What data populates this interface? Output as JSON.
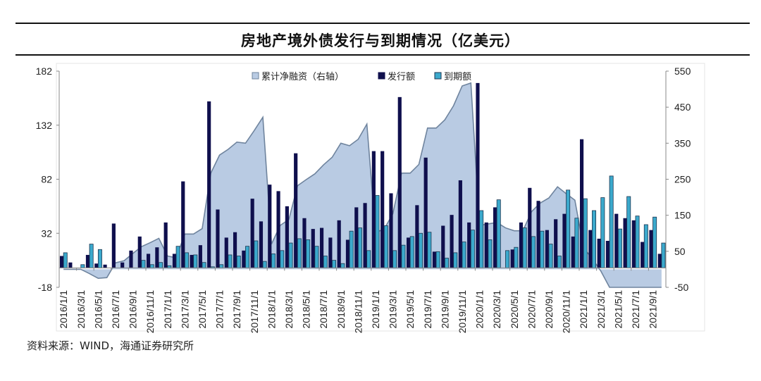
{
  "chart_data": {
    "type": "bar",
    "title": "房地产境外债发行与到期情况（亿美元）",
    "source": "资料来源：WIND，海通证券研究所",
    "legend_position": "top",
    "x_tick_labels": [
      "2016/1/1",
      "2016/3/1",
      "2016/5/1",
      "2016/7/1",
      "2016/9/1",
      "2016/11/1",
      "2017/1/1",
      "2017/3/1",
      "2017/5/1",
      "2017/7/1",
      "2017/9/1",
      "2017/11/1",
      "2018/1/1",
      "2018/3/1",
      "2018/5/1",
      "2018/7/1",
      "2018/9/1",
      "2018/11/1",
      "2019/1/1",
      "2019/3/1",
      "2019/5/1",
      "2019/7/1",
      "2019/9/1",
      "2019/11/1",
      "2020/1/1",
      "2020/3/1",
      "2020/5/1",
      "2020/7/1",
      "2020/9/1",
      "2020/11/1",
      "2021/1/1",
      "2021/3/1",
      "2021/5/1",
      "2021/7/1",
      "2021/9/1"
    ],
    "x_start": "2016/1",
    "x_end": "2021/10",
    "x_frequency": "monthly",
    "y_left": {
      "ylim": [
        -18,
        182
      ],
      "ticks": [
        -18,
        32,
        82,
        132,
        182
      ]
    },
    "y_right": {
      "ylim": [
        -50,
        550
      ],
      "ticks": [
        -50,
        50,
        150,
        250,
        350,
        450,
        550
      ]
    },
    "grid": false,
    "colors": {
      "issue": "#0f0f4d",
      "maturity": "#3ba9cc",
      "net_fill": "#b9cbe3",
      "net_line": "#6f849e"
    },
    "series": [
      {
        "name": "累计净融资（右轴）",
        "type": "area",
        "axis": "right",
        "values": [
          0,
          0,
          0,
          -12,
          -25,
          -23,
          18,
          24,
          44,
          63,
          74,
          86,
          37,
          32,
          98,
          98,
          113,
          267,
          317,
          333,
          353,
          350,
          385,
          422,
          70,
          122,
          138,
          232,
          249,
          265,
          290,
          311,
          350,
          343,
          361,
          403,
          102,
          112,
          154,
          267,
          267,
          291,
          392,
          392,
          415,
          454,
          509,
          517,
          122,
          126,
          130,
          115,
          107,
          107,
          160,
          184,
          198,
          229,
          210,
          192,
          60,
          30,
          -5,
          -52,
          -52,
          -52,
          -52,
          -52,
          -52,
          -52
        ]
      },
      {
        "name": "发行额",
        "type": "bar",
        "axis": "left",
        "values": [
          11,
          5,
          0,
          12,
          4,
          3,
          41,
          5,
          16,
          29,
          13,
          19,
          42,
          13,
          80,
          12,
          21,
          154,
          54,
          28,
          33,
          16,
          64,
          43,
          77,
          71,
          57,
          106,
          46,
          36,
          37,
          28,
          44,
          26,
          56,
          60,
          108,
          108,
          69,
          158,
          28,
          58,
          102,
          15,
          39,
          49,
          81,
          42,
          171,
          42,
          56,
          0,
          17,
          42,
          74,
          62,
          35,
          45,
          50,
          29,
          119,
          35,
          27,
          25,
          50,
          46,
          44,
          24,
          35,
          13
        ]
      },
      {
        "name": "到期额",
        "type": "bar",
        "axis": "left",
        "values": [
          14,
          0,
          3,
          22,
          17,
          0,
          0,
          0,
          0,
          7,
          3,
          5,
          2,
          20,
          14,
          12,
          5,
          1,
          3,
          12,
          11,
          20,
          25,
          6,
          13,
          16,
          23,
          27,
          26,
          20,
          11,
          7,
          4,
          34,
          37,
          16,
          67,
          39,
          16,
          21,
          29,
          32,
          33,
          15,
          9,
          14,
          24,
          35,
          53,
          26,
          63,
          16,
          19,
          37,
          29,
          34,
          22,
          11,
          72,
          46,
          64,
          53,
          65,
          85,
          36,
          66,
          48,
          40,
          47,
          23
        ]
      }
    ]
  }
}
